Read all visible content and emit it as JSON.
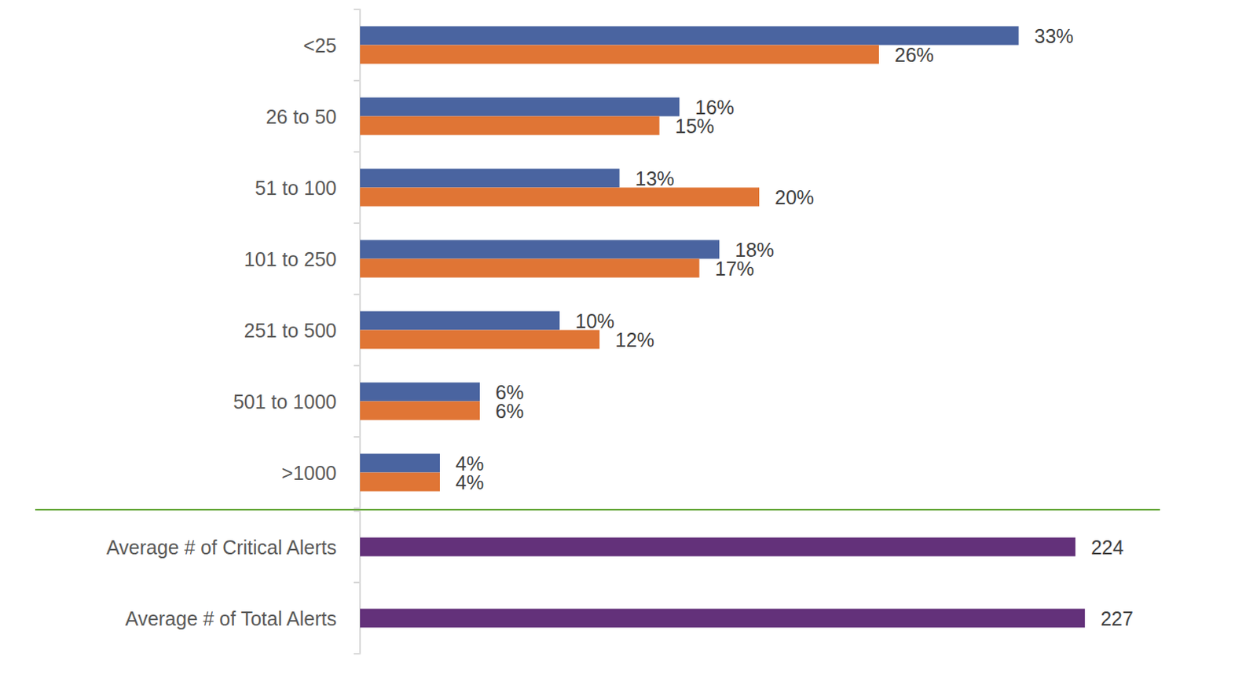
{
  "chart_data": [
    {
      "type": "bar",
      "orientation": "horizontal",
      "categories": [
        "<25",
        "26 to 50",
        "51 to 100",
        "101 to 250",
        "251 to 500",
        "501 to 1000",
        ">1000"
      ],
      "series": [
        {
          "color": "#4a64a0",
          "values": [
            33,
            16,
            13,
            18,
            10,
            6,
            4
          ],
          "value_labels": [
            "33%",
            "16%",
            "13%",
            "18%",
            "10%",
            "6%",
            "4%"
          ]
        },
        {
          "color": "#e07535",
          "values": [
            26,
            15,
            20,
            17,
            12,
            6,
            4
          ],
          "value_labels": [
            "26%",
            "15%",
            "20%",
            "17%",
            "12%",
            "6%",
            "4%"
          ]
        }
      ],
      "xlim": [
        0,
        40
      ],
      "xticks": [
        0,
        10,
        20,
        30,
        40
      ],
      "grid": false,
      "tick_labels": "y",
      "data_labels": true
    },
    {
      "type": "bar",
      "orientation": "horizontal",
      "categories": [
        "Average # of Critical Alerts",
        "Average # of Total Alerts"
      ],
      "values": [
        224,
        227
      ],
      "color": "#63317a",
      "xlim": [
        0,
        250
      ],
      "xticks": [
        0,
        50,
        100,
        150,
        200,
        250
      ],
      "grid": false,
      "tick_labels": "y",
      "data_labels": true
    }
  ]
}
